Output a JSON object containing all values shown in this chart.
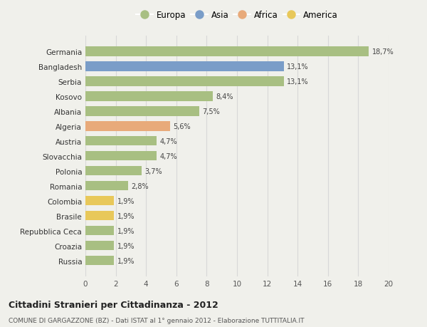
{
  "countries": [
    "Germania",
    "Bangladesh",
    "Serbia",
    "Kosovo",
    "Albania",
    "Algeria",
    "Austria",
    "Slovacchia",
    "Polonia",
    "Romania",
    "Colombia",
    "Brasile",
    "Repubblica Ceca",
    "Croazia",
    "Russia"
  ],
  "values": [
    18.7,
    13.1,
    13.1,
    8.4,
    7.5,
    5.6,
    4.7,
    4.7,
    3.7,
    2.8,
    1.9,
    1.9,
    1.9,
    1.9,
    1.9
  ],
  "labels": [
    "18,7%",
    "13,1%",
    "13,1%",
    "8,4%",
    "7,5%",
    "5,6%",
    "4,7%",
    "4,7%",
    "3,7%",
    "2,8%",
    "1,9%",
    "1,9%",
    "1,9%",
    "1,9%",
    "1,9%"
  ],
  "bar_colors": [
    "#a8bf82",
    "#7a9dc8",
    "#a8bf82",
    "#a8bf82",
    "#a8bf82",
    "#e8aa7a",
    "#a8bf82",
    "#a8bf82",
    "#a8bf82",
    "#a8bf82",
    "#e8c85a",
    "#e8c85a",
    "#a8bf82",
    "#a8bf82",
    "#a8bf82"
  ],
  "legend_labels": [
    "Europa",
    "Asia",
    "Africa",
    "America"
  ],
  "legend_colors": [
    "#a8bf82",
    "#7a9dc8",
    "#e8aa7a",
    "#e8c85a"
  ],
  "title": "Cittadini Stranieri per Cittadinanza - 2012",
  "subtitle": "COMUNE DI GARGAZZONE (BZ) - Dati ISTAT al 1° gennaio 2012 - Elaborazione TUTTITALIA.IT",
  "xlim": [
    0,
    20
  ],
  "xticks": [
    0,
    2,
    4,
    6,
    8,
    10,
    12,
    14,
    16,
    18,
    20
  ],
  "bg_color": "#f0f0eb",
  "plot_bg_color": "#f0f0eb",
  "grid_color": "#d8d8d8"
}
